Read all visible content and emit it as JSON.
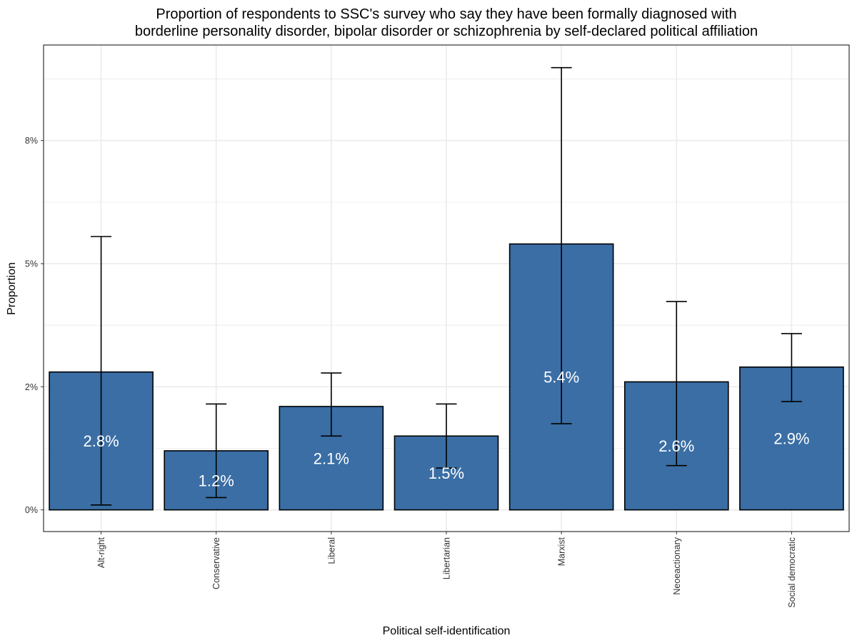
{
  "chart_data": {
    "type": "bar",
    "title": "Proportion of respondents to SSC's survey who say they have been formally diagnosed with borderline personality disorder, bipolar disorder or schizophrenia by self-declared political affiliation",
    "title_lines": [
      "Proportion of respondents to SSC's survey who say they have been formally diagnosed with",
      "borderline personality disorder, bipolar disorder or schizophrenia by self-declared political affiliation"
    ],
    "xlabel": "Political self-identification",
    "ylabel": "Proportion",
    "categories": [
      "Alt-right",
      "Conservative",
      "Liberal",
      "Libertarian",
      "Marxist",
      "Neoeactionary",
      "Social democratic"
    ],
    "values": [
      0.028,
      0.012,
      0.021,
      0.015,
      0.054,
      0.026,
      0.029
    ],
    "value_labels": [
      "2.8%",
      "1.2%",
      "2.1%",
      "1.5%",
      "5.4%",
      "2.6%",
      "2.9%"
    ],
    "error_low": [
      0.001,
      0.0025,
      0.015,
      0.0085,
      0.0175,
      0.009,
      0.022
    ],
    "error_high": [
      0.0555,
      0.0215,
      0.0278,
      0.0215,
      0.0898,
      0.0423,
      0.0358
    ],
    "ylim": [
      -0.0044,
      0.0944
    ],
    "yticks": [
      0,
      0.025,
      0.05,
      0.075
    ],
    "ytick_labels": [
      "0%",
      "2%",
      "5%",
      "8%"
    ],
    "ygrid_minor": [
      0.0125,
      0.0375,
      0.0625,
      0.0875
    ],
    "grid": true,
    "legend": "none",
    "bar_color": "#3a6ea5",
    "bar_edge_color": "#000000",
    "panel_border_color": "#333333",
    "grid_color": "#ebebeb",
    "label_color": "#ffffff"
  }
}
